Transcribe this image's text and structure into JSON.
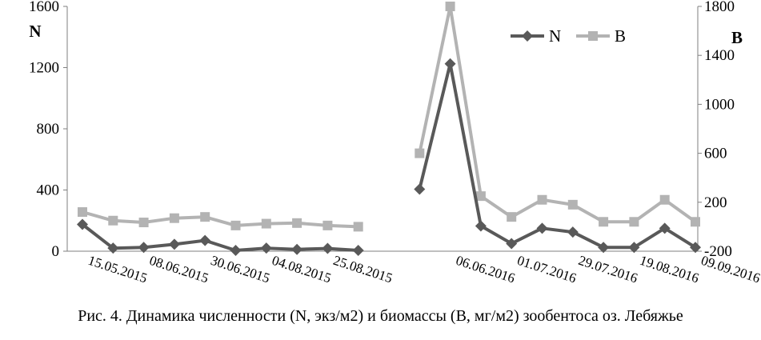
{
  "chart_data": {
    "type": "line",
    "left_axis_label": "N",
    "right_axis_label": "B",
    "ylim_left": [
      0,
      1600
    ],
    "yticks_left": [
      0,
      400,
      800,
      1200,
      1600
    ],
    "ylim_right": [
      -200,
      1800
    ],
    "yticks_right": [
      -200,
      200,
      600,
      1000,
      1400,
      1800
    ],
    "legend_position": "top-right",
    "x_tick_labels": [
      {
        "index": 0,
        "label": "15.05.2015"
      },
      {
        "index": 2,
        "label": "08.06.2015"
      },
      {
        "index": 4,
        "label": "30.06.2015"
      },
      {
        "index": 6,
        "label": "04.08.2015"
      },
      {
        "index": 8,
        "label": "25.08.2015"
      },
      {
        "index": 12,
        "label": "06.06.2016"
      },
      {
        "index": 14,
        "label": "01.07.2016"
      },
      {
        "index": 16,
        "label": "29.07.2016"
      },
      {
        "index": 18,
        "label": "19.08.2016"
      },
      {
        "index": 20,
        "label": "09.09.2016"
      }
    ],
    "series": [
      {
        "name": "N",
        "axis": "left",
        "color": "#595959",
        "marker": "diamond",
        "segments": [
          {
            "x": [
              0,
              1,
              2,
              3,
              4,
              5,
              6,
              7,
              8,
              9
            ],
            "y": [
              175,
              20,
              25,
              45,
              70,
              5,
              20,
              12,
              18,
              5
            ]
          },
          {
            "x": [
              11,
              12,
              13,
              14,
              15,
              16,
              17,
              18,
              19,
              20
            ],
            "y": [
              405,
              1225,
              165,
              50,
              150,
              125,
              25,
              25,
              150,
              25
            ]
          }
        ]
      },
      {
        "name": "B",
        "axis": "right",
        "color": "#b3b3b3",
        "marker": "square",
        "segments": [
          {
            "x": [
              0,
              1,
              2,
              3,
              4,
              5,
              6,
              7,
              8,
              9
            ],
            "y": [
              120,
              50,
              35,
              70,
              80,
              10,
              25,
              30,
              10,
              0
            ]
          },
          {
            "x": [
              11,
              12,
              13,
              14,
              15,
              16,
              17,
              18,
              19,
              20
            ],
            "y": [
              600,
              1800,
              250,
              80,
              220,
              180,
              40,
              40,
              220,
              40
            ]
          }
        ]
      }
    ]
  },
  "caption": "Рис. 4. Динамика численности (N, экз/м2) и биомассы (B, мг/м2) зообентоса оз. Лебяжье"
}
